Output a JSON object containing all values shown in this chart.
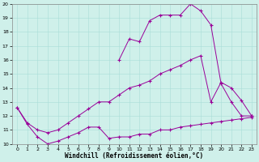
{
  "title": "",
  "xlabel": "Windchill (Refroidissement éolien,°C)",
  "ylabel": "",
  "bg_color": "#cff0ea",
  "line_color": "#990099",
  "xlim": [
    -0.5,
    23.5
  ],
  "ylim": [
    10,
    20
  ],
  "xticks": [
    0,
    1,
    2,
    3,
    4,
    5,
    6,
    7,
    8,
    9,
    10,
    11,
    12,
    13,
    14,
    15,
    16,
    17,
    18,
    19,
    20,
    21,
    22,
    23
  ],
  "yticks": [
    10,
    11,
    12,
    13,
    14,
    15,
    16,
    17,
    18,
    19,
    20
  ],
  "line1_x": [
    0,
    1,
    2,
    3,
    4,
    5,
    6,
    7,
    8,
    9,
    10,
    11,
    12,
    13,
    14,
    15,
    16,
    17,
    18,
    19,
    20,
    21,
    22,
    23
  ],
  "line1_y": [
    12.6,
    11.4,
    10.5,
    10.0,
    10.2,
    10.5,
    10.8,
    11.2,
    11.2,
    10.4,
    10.5,
    10.5,
    10.7,
    10.7,
    11.0,
    11.0,
    11.2,
    11.3,
    11.4,
    11.5,
    11.6,
    11.7,
    11.8,
    11.9
  ],
  "line2_x": [
    0,
    1,
    2,
    3,
    4,
    5,
    6,
    7,
    8,
    9,
    10,
    11,
    12,
    13,
    14,
    15,
    16,
    17,
    18,
    19,
    20,
    21,
    22,
    23
  ],
  "line2_y": [
    12.6,
    11.5,
    11.0,
    10.8,
    11.0,
    11.5,
    12.0,
    12.5,
    13.0,
    13.0,
    13.5,
    14.0,
    14.2,
    14.5,
    15.0,
    15.3,
    15.6,
    16.0,
    16.3,
    13.0,
    14.4,
    14.0,
    13.1,
    12.0
  ],
  "line3_x": [
    10,
    11,
    12,
    13,
    14,
    15,
    16,
    17,
    18,
    19,
    20,
    21,
    22,
    23
  ],
  "line3_y": [
    16.0,
    17.5,
    17.3,
    18.8,
    19.2,
    19.2,
    19.2,
    20.0,
    19.5,
    18.5,
    14.3,
    13.0,
    12.0,
    12.0
  ]
}
